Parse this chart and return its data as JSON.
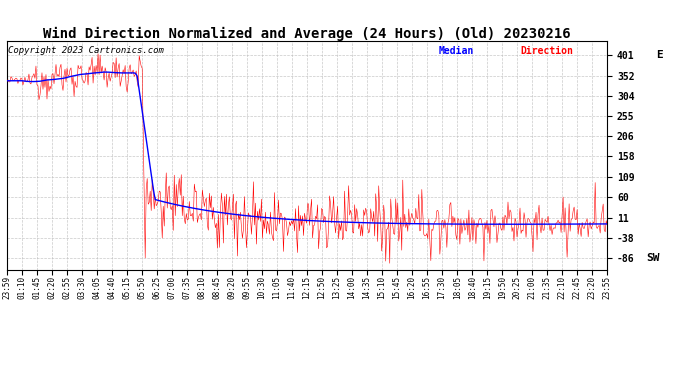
{
  "title": "Wind Direction Normalized and Average (24 Hours) (Old) 20230216",
  "copyright": "Copyright 2023 Cartronics.com",
  "ytick_vals": [
    401,
    352,
    304,
    255,
    206,
    158,
    109,
    60,
    11,
    -38,
    -86
  ],
  "ytick_labels_num": [
    "401",
    "352",
    "304",
    "255",
    "206",
    "158",
    "109",
    "60",
    "11",
    "-38",
    "-86"
  ],
  "ylim": [
    -115,
    435
  ],
  "background_color": "#ffffff",
  "grid_color": "#bbbbbb",
  "red_color": "#ff0000",
  "blue_color": "#0000ff",
  "title_fontsize": 10,
  "copyright_fontsize": 6.5,
  "tick_fontsize": 7,
  "xtick_labels": [
    "23:59",
    "01:10",
    "01:45",
    "02:20",
    "02:55",
    "03:30",
    "04:05",
    "04:40",
    "05:15",
    "05:50",
    "06:25",
    "07:00",
    "07:35",
    "08:10",
    "08:45",
    "09:20",
    "09:55",
    "10:30",
    "11:05",
    "11:40",
    "12:15",
    "12:50",
    "13:25",
    "14:00",
    "14:35",
    "15:10",
    "15:45",
    "16:20",
    "16:55",
    "17:30",
    "18:05",
    "18:40",
    "19:15",
    "19:50",
    "20:25",
    "21:00",
    "21:35",
    "22:10",
    "22:45",
    "23:20",
    "23:55"
  ]
}
